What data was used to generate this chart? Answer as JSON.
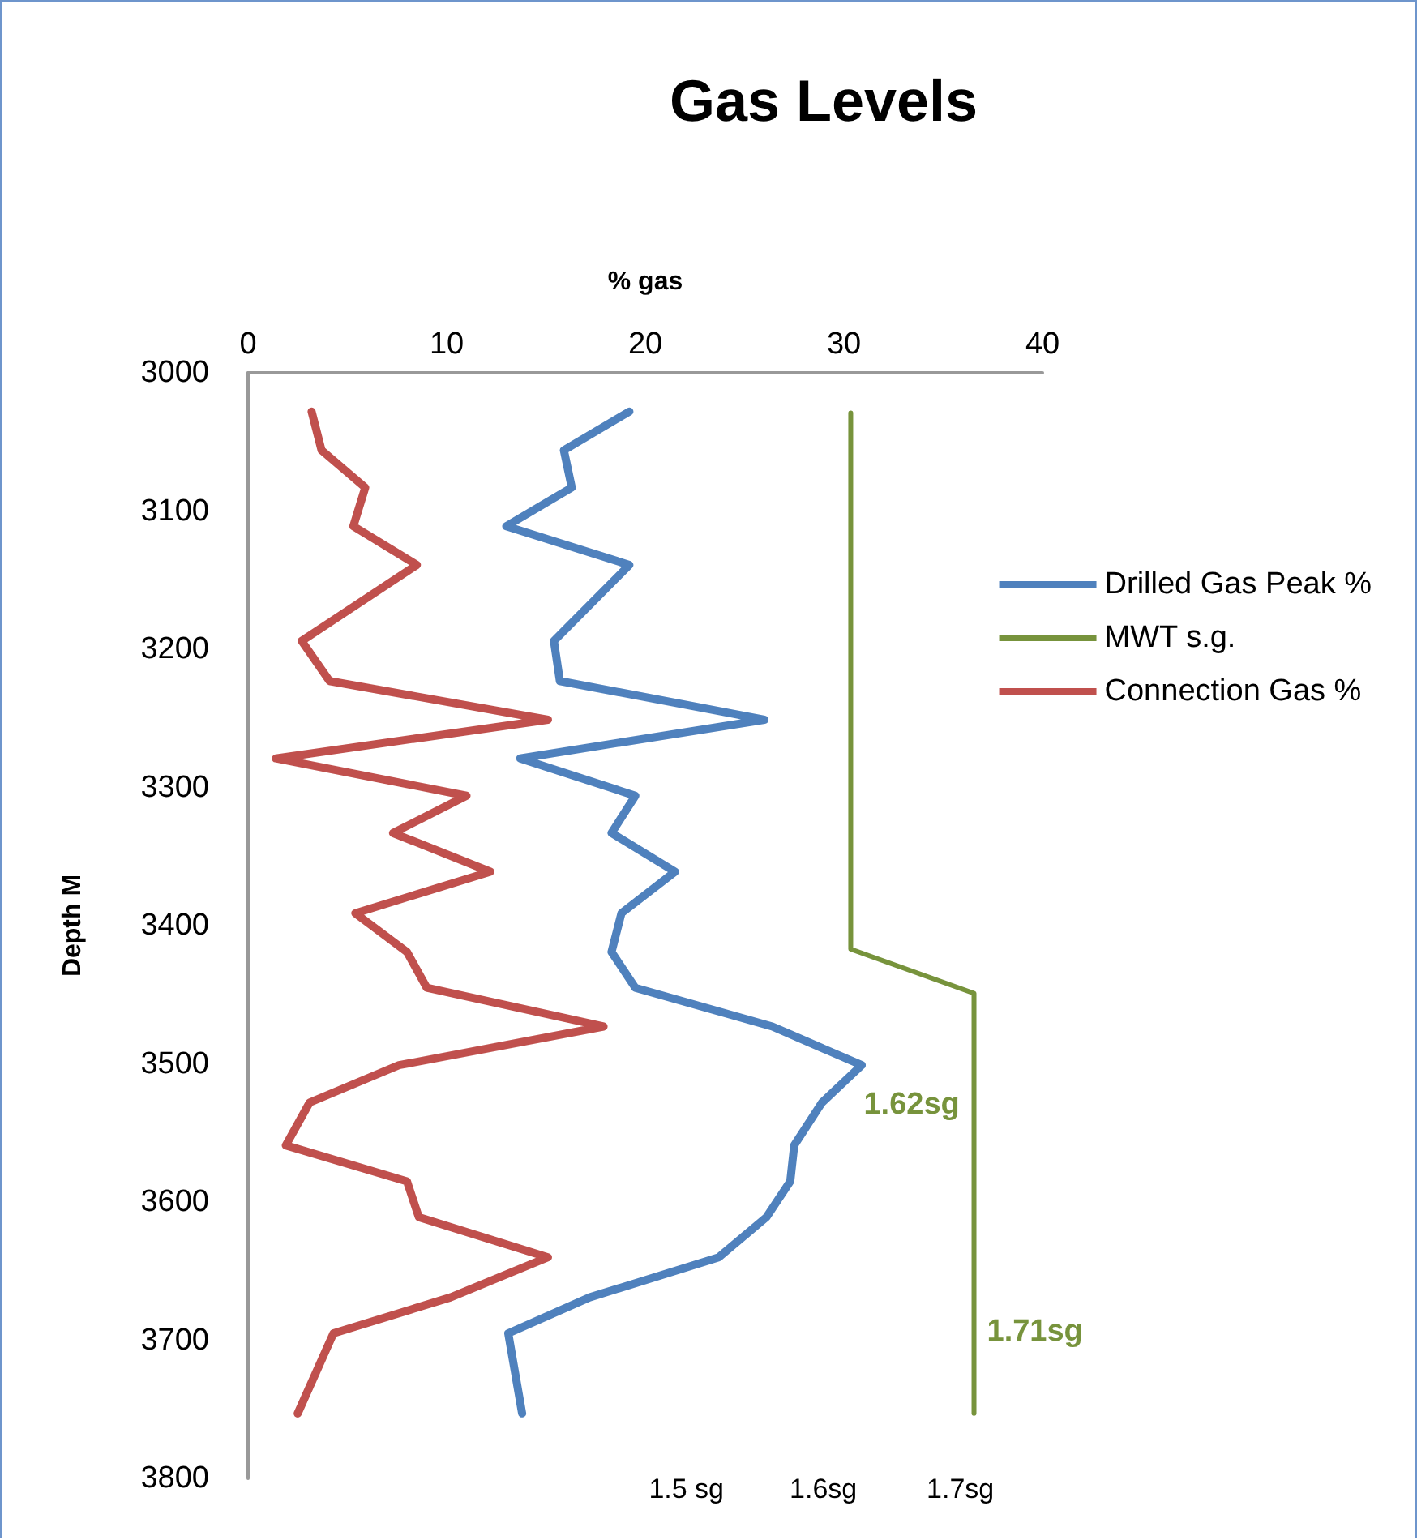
{
  "chart_data": {
    "type": "line",
    "title": "Gas Levels",
    "xlabel": "% gas",
    "ylabel": "Depth M",
    "xlim": [
      0,
      40
    ],
    "xticks": [
      0,
      10,
      20,
      30,
      40
    ],
    "ylim": [
      3800,
      3000
    ],
    "yticks": [
      3000,
      3100,
      3200,
      3300,
      3400,
      3500,
      3600,
      3700,
      3800
    ],
    "x2lim": [
      1.18,
      1.76
    ],
    "x2ticks": [
      {
        "value": 1.5,
        "label": "1.5 sg"
      },
      {
        "value": 1.6,
        "label": "1.6sg"
      },
      {
        "value": 1.7,
        "label": "1.7sg"
      }
    ],
    "grid": false,
    "legend": "right",
    "marker": "none",
    "line_style": "solid",
    "series": [
      {
        "name": "Drilled Gas Peak %",
        "color": "#4f81bd",
        "x": [
          19.2,
          15.9,
          16.3,
          13.0,
          19.2,
          15.4,
          15.7,
          26.0,
          13.7,
          19.5,
          18.3,
          21.5,
          18.8,
          18.3,
          19.5,
          26.4,
          30.9,
          28.9,
          27.5,
          27.3,
          26.1,
          23.7,
          17.2,
          13.1,
          13.8
        ],
        "values": [
          3028,
          3056,
          3083,
          3111,
          3139,
          3194,
          3223,
          3251,
          3279,
          3306,
          3333,
          3361,
          3391,
          3419,
          3445,
          3473,
          3501,
          3528,
          3559,
          3585,
          3611,
          3640,
          3669,
          3695,
          3753
        ]
      },
      {
        "name": "MWT s.g.",
        "color": "#77933c",
        "axis": "x2",
        "x": [
          1.62,
          1.62,
          1.71,
          1.71
        ],
        "values": [
          3029,
          3417,
          3449,
          3753
        ]
      },
      {
        "name": "Connection Gas %",
        "color": "#c0504d",
        "x": [
          3.2,
          3.7,
          5.9,
          5.3,
          8.5,
          2.7,
          4.1,
          15.1,
          1.4,
          11.0,
          7.3,
          12.2,
          5.4,
          8.0,
          9.0,
          17.9,
          7.6,
          3.1,
          1.9,
          8.0,
          8.6,
          15.1,
          10.2,
          4.3,
          2.5
        ],
        "values": [
          3028,
          3056,
          3083,
          3111,
          3139,
          3194,
          3223,
          3251,
          3279,
          3306,
          3333,
          3361,
          3391,
          3419,
          3445,
          3473,
          3501,
          3528,
          3559,
          3585,
          3611,
          3640,
          3669,
          3695,
          3753
        ]
      }
    ],
    "annotations": [
      "1.62sg",
      "1.71sg"
    ]
  }
}
